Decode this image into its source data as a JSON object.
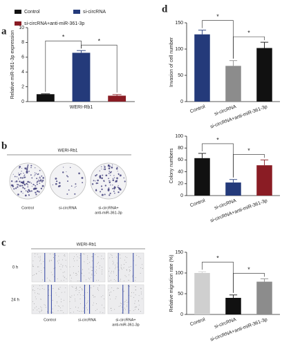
{
  "chart_data": [
    {
      "type": "bar",
      "panel": "a",
      "ylabel": "Relative miR-361-3p expression",
      "categories": [
        "WERI-Rb1"
      ],
      "series": [
        {
          "name": "Control",
          "color": "#111111",
          "values": [
            1.0
          ],
          "errors": [
            0.05
          ]
        },
        {
          "name": "si-circRNA",
          "color": "#243a7a",
          "values": [
            6.6
          ],
          "errors": [
            0.3
          ]
        },
        {
          "name": "si-circRNA+anti-miR-361-3p",
          "color": "#8a1c24",
          "values": [
            0.8
          ],
          "errors": [
            0.15
          ]
        }
      ],
      "ylim": [
        0,
        10
      ],
      "yticks": [
        0,
        2,
        4,
        6,
        8,
        10
      ],
      "annotations": [
        "*",
        "*"
      ]
    },
    {
      "type": "bar",
      "panel": "d",
      "ylabel": "Invasion of cell number",
      "categories": [
        "Control",
        "si-circRNA",
        "si-circRNA+anti-miR-361-3p"
      ],
      "values": [
        128,
        68,
        102
      ],
      "errors": [
        8,
        10,
        11
      ],
      "colors": [
        "#243a7a",
        "#8c8c8c",
        "#111111"
      ],
      "ylim": [
        0,
        150
      ],
      "yticks": [
        0,
        50,
        100,
        150
      ],
      "annotations": [
        "*",
        "*"
      ]
    },
    {
      "type": "bar",
      "panel": "b",
      "ylabel": "Colony numbers",
      "categories": [
        "Control",
        "si-circRNA",
        "si-circRNA+anti-miR-361-3p"
      ],
      "values": [
        63,
        22,
        51
      ],
      "errors": [
        8,
        5,
        9
      ],
      "colors": [
        "#111111",
        "#243a7a",
        "#8a1c24"
      ],
      "ylim": [
        0,
        100
      ],
      "yticks": [
        0,
        20,
        40,
        60,
        80,
        100
      ],
      "annotations": [
        "*",
        "*"
      ]
    },
    {
      "type": "bar",
      "panel": "c",
      "ylabel": "Relative migration rate (%)",
      "categories": [
        "Control",
        "si-circRNA",
        "si-circRNA+anti-miR-361-3p"
      ],
      "values": [
        100,
        40,
        79
      ],
      "errors": [
        3,
        7,
        7
      ],
      "colors": [
        "#cfcfcf",
        "#111111",
        "#8c8c8c"
      ],
      "ylim": [
        0,
        150
      ],
      "yticks": [
        0,
        50,
        100,
        150
      ],
      "annotations": [
        "*",
        "*"
      ]
    }
  ],
  "images": {
    "b": {
      "title": "WERI-Rb1",
      "labels": [
        "Control",
        "si-circRNA",
        "si-circRNA+",
        "anti-miR-361-3p"
      ]
    },
    "c": {
      "title": "WERI-Rb1",
      "rows": [
        "0 h",
        "24 h"
      ],
      "labels": [
        "Control",
        "si-circRNA",
        "si-circRNA+",
        "anti-miR-361-3p"
      ]
    }
  }
}
